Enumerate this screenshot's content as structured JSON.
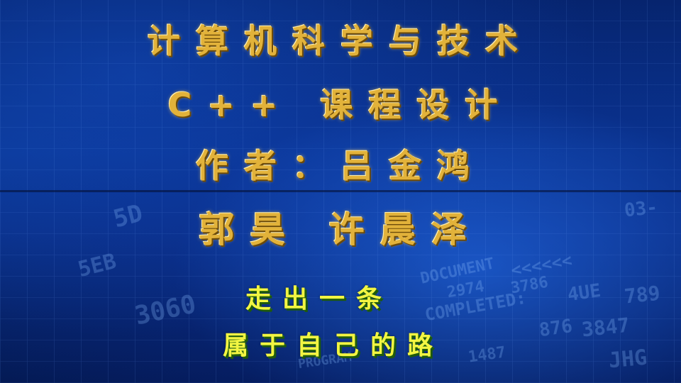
{
  "title": {
    "line1": "计算机科学与技术",
    "line2": "C++ 课程设计",
    "line3": "作者：吕金鸿",
    "line4": "郭昊 许晨泽"
  },
  "slogan": {
    "line1": "走出一条",
    "line2": "属于自己的路"
  },
  "background": {
    "texts": [
      "DOCUMENT",
      "COMPLETED:",
      "PROGRAM",
      "<<<<<<",
      "2974",
      "3786",
      "4UE",
      "789",
      "876",
      "3847",
      "JHG",
      "5D",
      "3060",
      "5EB",
      "1487",
      "03-"
    ]
  },
  "colors": {
    "title_gold": "#e2b23a",
    "slogan_yellow": "#f2f542",
    "slogan_shadow_green": "#2e7a14",
    "background_blue": "#0a3590"
  }
}
